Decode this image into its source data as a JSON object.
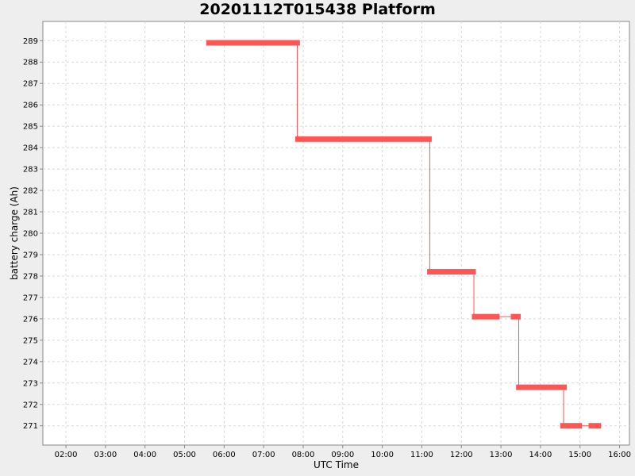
{
  "chart_data": {
    "type": "line",
    "title": "20201112T015438 Platform",
    "xlabel": "UTC Time",
    "ylabel": "battery charge (Ah)",
    "xlim": [
      "01:25",
      "16:15"
    ],
    "ylim": [
      270.1,
      289.9
    ],
    "x_ticks": [
      "02:00",
      "03:00",
      "04:00",
      "05:00",
      "06:00",
      "07:00",
      "08:00",
      "09:00",
      "10:00",
      "11:00",
      "12:00",
      "13:00",
      "14:00",
      "15:00",
      "16:00"
    ],
    "y_ticks": [
      271,
      272,
      273,
      274,
      275,
      276,
      277,
      278,
      279,
      280,
      281,
      282,
      283,
      284,
      285,
      286,
      287,
      288,
      289
    ],
    "grid": true,
    "series_color": "#ff5555",
    "segments": [
      {
        "start": "05:33",
        "end": "07:55",
        "value": 288.9
      },
      {
        "start": "07:48",
        "end": "11:15",
        "value": 284.4
      },
      {
        "start": "11:08",
        "end": "12:22",
        "value": 278.2
      },
      {
        "start": "12:16",
        "end": "12:58",
        "value": 276.1
      },
      {
        "start": "13:15",
        "end": "13:30",
        "value": 276.1
      },
      {
        "start": "13:23",
        "end": "14:40",
        "value": 272.8
      },
      {
        "start": "14:30",
        "end": "15:03",
        "value": 271.0
      },
      {
        "start": "15:13",
        "end": "15:32",
        "value": 271.0
      }
    ],
    "drops": [
      {
        "time": "07:51",
        "from": 288.9,
        "to": 284.4
      },
      {
        "time": "11:12",
        "from": 284.4,
        "to": 278.2
      },
      {
        "time": "12:19",
        "from": 278.2,
        "to": 276.1
      },
      {
        "time": "13:27",
        "from": 276.1,
        "to": 272.8
      },
      {
        "time": "14:35",
        "from": 272.8,
        "to": 271.0
      }
    ],
    "connectors": [
      {
        "start": "12:58",
        "end": "13:15",
        "value": 276.1
      },
      {
        "start": "15:03",
        "end": "15:13",
        "value": 271.0
      }
    ]
  }
}
